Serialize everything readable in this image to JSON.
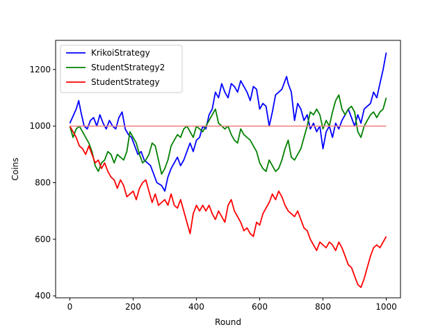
{
  "chart_data": {
    "type": "line",
    "xlabel": "Round",
    "ylabel": "Coins",
    "xlim": [
      -45,
      1045
    ],
    "ylim": [
      393,
      1303
    ],
    "xticks": [
      0,
      200,
      400,
      600,
      800,
      1000
    ],
    "yticks": [
      400,
      600,
      800,
      1000,
      1200
    ],
    "grid": false,
    "legend_position": "upper-left",
    "baseline": {
      "y": 1000,
      "color": "#f08080"
    },
    "series": [
      {
        "name": "KrikoiStrategy",
        "color": "#0000ff",
        "points": [
          [
            0,
            1010
          ],
          [
            10,
            1035
          ],
          [
            20,
            1060
          ],
          [
            28,
            1090
          ],
          [
            35,
            1050
          ],
          [
            45,
            1000
          ],
          [
            55,
            990
          ],
          [
            65,
            1020
          ],
          [
            75,
            1030
          ],
          [
            85,
            1000
          ],
          [
            95,
            1040
          ],
          [
            105,
            1010
          ],
          [
            115,
            990
          ],
          [
            125,
            1020
          ],
          [
            135,
            1000
          ],
          [
            145,
            990
          ],
          [
            155,
            1030
          ],
          [
            165,
            1050
          ],
          [
            175,
            990
          ],
          [
            185,
            970
          ],
          [
            195,
            960
          ],
          [
            205,
            930
          ],
          [
            215,
            900
          ],
          [
            225,
            910
          ],
          [
            235,
            880
          ],
          [
            245,
            870
          ],
          [
            255,
            860
          ],
          [
            265,
            830
          ],
          [
            275,
            800
          ],
          [
            290,
            790
          ],
          [
            300,
            770
          ],
          [
            310,
            820
          ],
          [
            320,
            850
          ],
          [
            330,
            870
          ],
          [
            340,
            890
          ],
          [
            350,
            860
          ],
          [
            360,
            880
          ],
          [
            370,
            910
          ],
          [
            380,
            940
          ],
          [
            390,
            910
          ],
          [
            400,
            950
          ],
          [
            410,
            960
          ],
          [
            420,
            1000
          ],
          [
            430,
            990
          ],
          [
            440,
            1040
          ],
          [
            450,
            1060
          ],
          [
            460,
            1120
          ],
          [
            470,
            1100
          ],
          [
            480,
            1150
          ],
          [
            490,
            1120
          ],
          [
            500,
            1100
          ],
          [
            510,
            1150
          ],
          [
            520,
            1140
          ],
          [
            530,
            1120
          ],
          [
            540,
            1160
          ],
          [
            550,
            1140
          ],
          [
            560,
            1120
          ],
          [
            570,
            1090
          ],
          [
            580,
            1140
          ],
          [
            590,
            1130
          ],
          [
            600,
            1060
          ],
          [
            610,
            1080
          ],
          [
            620,
            1070
          ],
          [
            630,
            1000
          ],
          [
            640,
            1050
          ],
          [
            650,
            1110
          ],
          [
            660,
            1120
          ],
          [
            670,
            1130
          ],
          [
            680,
            1160
          ],
          [
            685,
            1175
          ],
          [
            690,
            1150
          ],
          [
            700,
            1120
          ],
          [
            710,
            1020
          ],
          [
            720,
            1080
          ],
          [
            730,
            1060
          ],
          [
            740,
            1020
          ],
          [
            750,
            1040
          ],
          [
            760,
            990
          ],
          [
            770,
            1010
          ],
          [
            780,
            980
          ],
          [
            790,
            1000
          ],
          [
            800,
            920
          ],
          [
            810,
            980
          ],
          [
            820,
            1000
          ],
          [
            830,
            960
          ],
          [
            840,
            1010
          ],
          [
            850,
            990
          ],
          [
            860,
            1020
          ],
          [
            870,
            1040
          ],
          [
            880,
            1060
          ],
          [
            890,
            1030
          ],
          [
            900,
            1000
          ],
          [
            910,
            1040
          ],
          [
            920,
            1010
          ],
          [
            930,
            1060
          ],
          [
            940,
            1070
          ],
          [
            950,
            1080
          ],
          [
            960,
            1120
          ],
          [
            970,
            1100
          ],
          [
            980,
            1150
          ],
          [
            990,
            1200
          ],
          [
            1000,
            1260
          ]
        ]
      },
      {
        "name": "StudentStrategy2",
        "color": "#008000",
        "points": [
          [
            0,
            1000
          ],
          [
            10,
            960
          ],
          [
            20,
            990
          ],
          [
            30,
            1000
          ],
          [
            40,
            980
          ],
          [
            50,
            960
          ],
          [
            60,
            940
          ],
          [
            70,
            910
          ],
          [
            80,
            860
          ],
          [
            90,
            840
          ],
          [
            100,
            870
          ],
          [
            110,
            880
          ],
          [
            120,
            910
          ],
          [
            130,
            900
          ],
          [
            140,
            870
          ],
          [
            150,
            900
          ],
          [
            160,
            890
          ],
          [
            170,
            880
          ],
          [
            180,
            910
          ],
          [
            190,
            980
          ],
          [
            200,
            960
          ],
          [
            210,
            940
          ],
          [
            220,
            900
          ],
          [
            230,
            870
          ],
          [
            240,
            880
          ],
          [
            250,
            900
          ],
          [
            260,
            940
          ],
          [
            270,
            930
          ],
          [
            280,
            880
          ],
          [
            290,
            830
          ],
          [
            300,
            850
          ],
          [
            310,
            880
          ],
          [
            320,
            930
          ],
          [
            330,
            950
          ],
          [
            340,
            970
          ],
          [
            350,
            960
          ],
          [
            360,
            990
          ],
          [
            370,
            1000
          ],
          [
            380,
            980
          ],
          [
            390,
            960
          ],
          [
            400,
            1000
          ],
          [
            410,
            990
          ],
          [
            420,
            980
          ],
          [
            430,
            1000
          ],
          [
            440,
            1020
          ],
          [
            450,
            1040
          ],
          [
            460,
            1060
          ],
          [
            470,
            1010
          ],
          [
            480,
            1000
          ],
          [
            490,
            990
          ],
          [
            500,
            1000
          ],
          [
            510,
            970
          ],
          [
            520,
            950
          ],
          [
            530,
            940
          ],
          [
            540,
            990
          ],
          [
            550,
            970
          ],
          [
            560,
            960
          ],
          [
            570,
            950
          ],
          [
            580,
            930
          ],
          [
            590,
            910
          ],
          [
            600,
            870
          ],
          [
            610,
            850
          ],
          [
            620,
            840
          ],
          [
            630,
            880
          ],
          [
            640,
            860
          ],
          [
            650,
            840
          ],
          [
            660,
            850
          ],
          [
            670,
            880
          ],
          [
            680,
            920
          ],
          [
            690,
            950
          ],
          [
            700,
            890
          ],
          [
            710,
            880
          ],
          [
            720,
            900
          ],
          [
            730,
            920
          ],
          [
            740,
            960
          ],
          [
            750,
            1000
          ],
          [
            760,
            1050
          ],
          [
            770,
            1040
          ],
          [
            780,
            1060
          ],
          [
            790,
            1040
          ],
          [
            800,
            990
          ],
          [
            810,
            1020
          ],
          [
            820,
            1000
          ],
          [
            830,
            1050
          ],
          [
            840,
            1090
          ],
          [
            850,
            1110
          ],
          [
            860,
            1060
          ],
          [
            870,
            1040
          ],
          [
            880,
            1060
          ],
          [
            890,
            1070
          ],
          [
            900,
            1050
          ],
          [
            910,
            980
          ],
          [
            920,
            960
          ],
          [
            930,
            1000
          ],
          [
            940,
            1020
          ],
          [
            950,
            1040
          ],
          [
            960,
            1050
          ],
          [
            970,
            1030
          ],
          [
            980,
            1050
          ],
          [
            990,
            1060
          ],
          [
            1000,
            1100
          ]
        ]
      },
      {
        "name": "StudentStrategy",
        "color": "#ff0000",
        "points": [
          [
            0,
            1000
          ],
          [
            10,
            980
          ],
          [
            20,
            960
          ],
          [
            30,
            930
          ],
          [
            40,
            920
          ],
          [
            50,
            900
          ],
          [
            60,
            930
          ],
          [
            70,
            900
          ],
          [
            80,
            870
          ],
          [
            90,
            880
          ],
          [
            100,
            850
          ],
          [
            110,
            870
          ],
          [
            120,
            840
          ],
          [
            130,
            820
          ],
          [
            140,
            810
          ],
          [
            150,
            780
          ],
          [
            160,
            810
          ],
          [
            170,
            790
          ],
          [
            180,
            750
          ],
          [
            190,
            760
          ],
          [
            200,
            770
          ],
          [
            210,
            740
          ],
          [
            220,
            780
          ],
          [
            230,
            800
          ],
          [
            240,
            810
          ],
          [
            250,
            770
          ],
          [
            260,
            730
          ],
          [
            270,
            760
          ],
          [
            280,
            720
          ],
          [
            290,
            730
          ],
          [
            300,
            740
          ],
          [
            310,
            720
          ],
          [
            320,
            760
          ],
          [
            330,
            720
          ],
          [
            340,
            710
          ],
          [
            350,
            740
          ],
          [
            360,
            700
          ],
          [
            370,
            660
          ],
          [
            380,
            620
          ],
          [
            390,
            690
          ],
          [
            400,
            720
          ],
          [
            410,
            700
          ],
          [
            420,
            720
          ],
          [
            430,
            700
          ],
          [
            440,
            720
          ],
          [
            450,
            690
          ],
          [
            460,
            670
          ],
          [
            470,
            700
          ],
          [
            480,
            680
          ],
          [
            490,
            660
          ],
          [
            500,
            720
          ],
          [
            510,
            740
          ],
          [
            520,
            700
          ],
          [
            530,
            680
          ],
          [
            540,
            660
          ],
          [
            550,
            630
          ],
          [
            560,
            640
          ],
          [
            570,
            620
          ],
          [
            580,
            610
          ],
          [
            590,
            660
          ],
          [
            600,
            650
          ],
          [
            610,
            690
          ],
          [
            620,
            710
          ],
          [
            630,
            730
          ],
          [
            640,
            760
          ],
          [
            650,
            740
          ],
          [
            660,
            770
          ],
          [
            670,
            750
          ],
          [
            680,
            720
          ],
          [
            690,
            700
          ],
          [
            700,
            690
          ],
          [
            710,
            680
          ],
          [
            720,
            700
          ],
          [
            730,
            670
          ],
          [
            740,
            640
          ],
          [
            750,
            630
          ],
          [
            760,
            600
          ],
          [
            770,
            580
          ],
          [
            780,
            560
          ],
          [
            790,
            590
          ],
          [
            800,
            580
          ],
          [
            810,
            570
          ],
          [
            820,
            590
          ],
          [
            830,
            580
          ],
          [
            840,
            560
          ],
          [
            850,
            590
          ],
          [
            860,
            570
          ],
          [
            870,
            540
          ],
          [
            880,
            510
          ],
          [
            890,
            500
          ],
          [
            900,
            470
          ],
          [
            910,
            440
          ],
          [
            920,
            430
          ],
          [
            930,
            460
          ],
          [
            940,
            500
          ],
          [
            950,
            540
          ],
          [
            960,
            570
          ],
          [
            970,
            580
          ],
          [
            980,
            570
          ],
          [
            990,
            590
          ],
          [
            1000,
            610
          ]
        ]
      }
    ]
  }
}
